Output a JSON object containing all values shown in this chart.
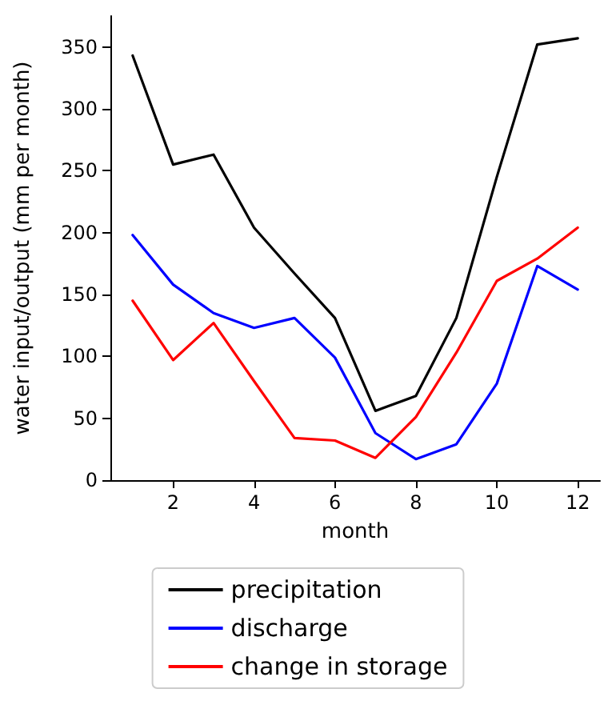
{
  "chart_data": {
    "type": "line",
    "xlabel": "month",
    "ylabel": "water input/output (mm per month)",
    "x": [
      1,
      2,
      3,
      4,
      5,
      6,
      7,
      8,
      9,
      10,
      11,
      12
    ],
    "series": [
      {
        "name": "precipitation",
        "color": "#000000",
        "values": [
          343,
          255,
          263,
          204,
          167,
          131,
          56,
          68,
          131,
          245,
          352,
          357
        ]
      },
      {
        "name": "discharge",
        "color": "#0000ff",
        "values": [
          198,
          158,
          135,
          123,
          131,
          99,
          38,
          17,
          29,
          78,
          173,
          154
        ]
      },
      {
        "name": "change in storage",
        "color": "#ff0000",
        "values": [
          145,
          97,
          127,
          80,
          34,
          32,
          18,
          51,
          103,
          161,
          179,
          204
        ]
      }
    ],
    "xlim": [
      0.45,
      12.55
    ],
    "xticks": [
      2,
      4,
      6,
      8,
      10,
      12
    ],
    "ylim": [
      0,
      375
    ],
    "yticks": [
      0,
      50,
      100,
      150,
      200,
      250,
      300,
      350
    ],
    "grid": false,
    "legend": "bottom",
    "marker": "none",
    "line_style": "solid"
  }
}
